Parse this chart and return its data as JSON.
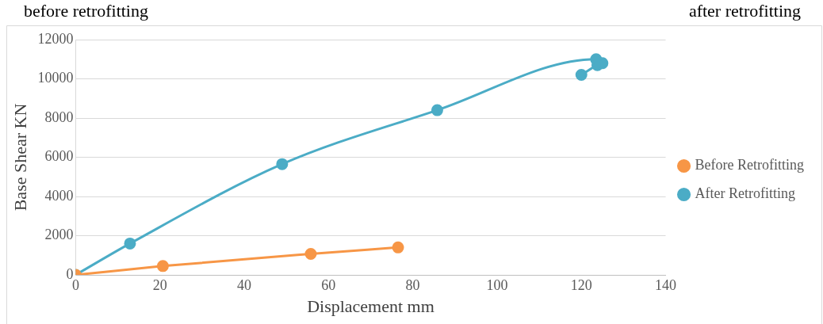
{
  "chart_data": {
    "type": "line",
    "xlabel": "Displacement mm",
    "ylabel": "Base Shear KN",
    "annotations": [
      "before retrofitting",
      "after retrofitting"
    ],
    "xlim": [
      0,
      140
    ],
    "xticks": [
      0,
      20,
      40,
      60,
      80,
      100,
      120,
      140
    ],
    "ylim": [
      0,
      12000
    ],
    "yticks": [
      0,
      2000,
      4000,
      6000,
      8000,
      10000,
      12000
    ],
    "grid": "y",
    "legend": "right",
    "marker": "circle",
    "series": [
      {
        "name": "Before Retrofitting",
        "color": "#f79646",
        "x": [
          0,
          20.7,
          55.8,
          76.5
        ],
        "values": [
          0,
          450,
          1070,
          1400
        ]
      },
      {
        "name": "After Retrofitting",
        "color": "#4bacc6",
        "x": [
          0,
          12.9,
          49,
          85.8,
          123.5,
          125,
          123.8,
          120
        ],
        "values": [
          0,
          1600,
          5650,
          8400,
          11000,
          10800,
          10700,
          10200
        ]
      }
    ]
  }
}
